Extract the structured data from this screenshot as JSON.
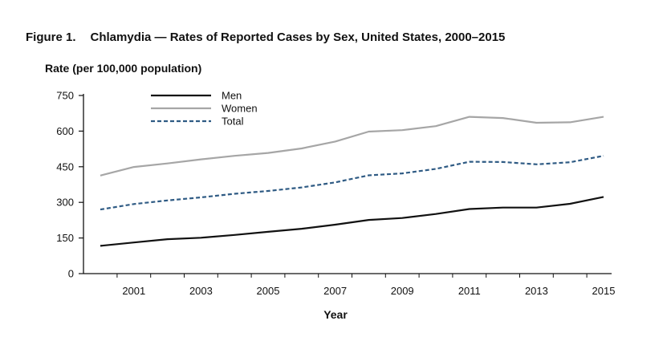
{
  "figure": {
    "number": "Figure 1.",
    "title": "Chlamydia — Rates of Reported Cases by Sex, United States, 2000–2015"
  },
  "chart_data": {
    "type": "line",
    "title": "Chlamydia — Rates of Reported Cases by Sex, United States, 2000–2015",
    "ylabel": "Rate (per 100,000 population)",
    "xlabel": "Year",
    "ylim": [
      0,
      750
    ],
    "yticks": [
      0,
      150,
      300,
      450,
      600,
      750
    ],
    "xlim": [
      2000,
      2015
    ],
    "xticks": [
      2001,
      2003,
      2005,
      2007,
      2009,
      2011,
      2013,
      2015
    ],
    "grid": false,
    "legend_position": "top-left",
    "x": [
      2000,
      2001,
      2002,
      2003,
      2004,
      2005,
      2006,
      2007,
      2008,
      2009,
      2010,
      2011,
      2012,
      2013,
      2014,
      2015
    ],
    "series": [
      {
        "name": "Men",
        "color": "#111111",
        "style": "solid",
        "values": [
          117,
          131,
          145,
          151,
          163,
          176,
          189,
          206,
          226,
          234,
          251,
          272,
          278,
          278,
          294,
          323
        ]
      },
      {
        "name": "Women",
        "color": "#a6a6a6",
        "style": "solid",
        "values": [
          413,
          449,
          464,
          481,
          496,
          508,
          527,
          556,
          598,
          604,
          621,
          660,
          655,
          635,
          637,
          660
        ]
      },
      {
        "name": "Total",
        "color": "#2f5b84",
        "style": "dashed",
        "values": [
          270,
          293,
          308,
          321,
          336,
          348,
          363,
          384,
          414,
          422,
          441,
          471,
          470,
          460,
          469,
          496
        ]
      }
    ]
  }
}
